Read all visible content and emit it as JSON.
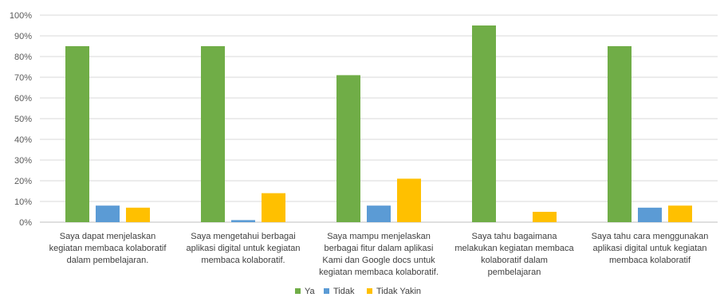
{
  "chart_data": {
    "type": "bar",
    "categories": [
      [
        "Saya dapat menjelaskan",
        "kegiatan membaca kolaboratif",
        "dalam pembelajaran."
      ],
      [
        "Saya mengetahui berbagai",
        "aplikasi digital untuk kegiatan",
        "membaca kolaboratif."
      ],
      [
        "Saya mampu menjelaskan",
        "berbagai fitur dalam aplikasi",
        "Kami dan Google docs untuk",
        "kegiatan membaca kolaboratif."
      ],
      [
        "Saya tahu bagaimana",
        "melakukan kegiatan membaca",
        "kolaboratif dalam",
        "pembelajaran"
      ],
      [
        "Saya tahu cara menggunakan",
        "aplikasi digital untuk kegiatan",
        "membaca kolaboratif"
      ]
    ],
    "series": [
      {
        "name": "Ya",
        "color": "#70ad47",
        "values": [
          85,
          85,
          71,
          95,
          85
        ]
      },
      {
        "name": "Tidak",
        "color": "#5b9bd5",
        "values": [
          8,
          1,
          8,
          0,
          7
        ]
      },
      {
        "name": "Tidak Yakin",
        "color": "#ffc000",
        "values": [
          7,
          14,
          21,
          5,
          8
        ]
      }
    ],
    "ylim": [
      0,
      100
    ],
    "yticks": [
      "0%",
      "10%",
      "20%",
      "30%",
      "40%",
      "50%",
      "60%",
      "70%",
      "80%",
      "90%",
      "100%"
    ],
    "grid": true,
    "legend": "bottom-center"
  }
}
